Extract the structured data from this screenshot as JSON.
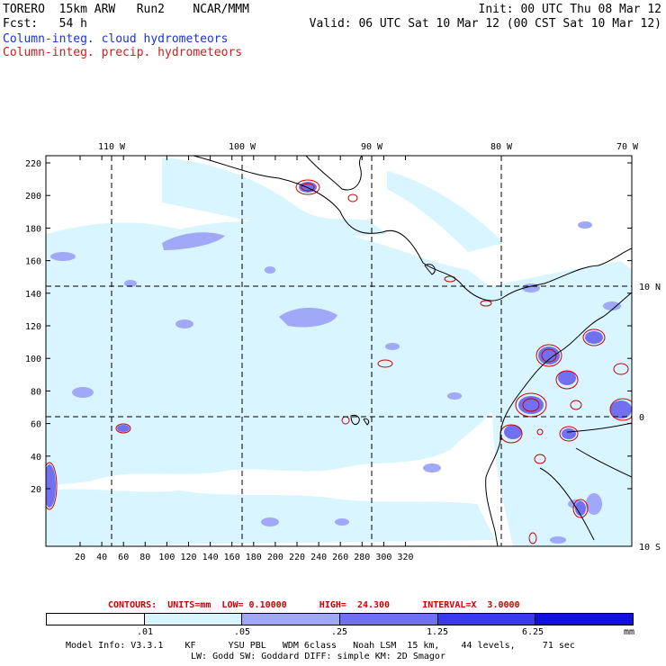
{
  "header": {
    "model": "TORERO  15km ARW   Run2    NCAR/MMM",
    "init": "Init: 00 UTC Thu 08 Mar 12",
    "fcst": "Fcst:   54 h",
    "valid": "Valid: 06 UTC Sat 10 Mar 12 (00 CST Sat 10 Mar 12)",
    "field_cloud": "Column-integ. cloud hydrometeors",
    "field_precip": "Column-integ. precip. hydrometeors",
    "color_cloud_label": "#1a33d6",
    "color_precip_label": "#d41a1a"
  },
  "map": {
    "top_lon_labels": [
      "110 W",
      "100 W",
      "90 W",
      "80 W",
      "70 W"
    ],
    "right_lat_labels": [
      "10 N",
      "0",
      "10 S"
    ],
    "y_ticks": [
      "220",
      "200",
      "180",
      "160",
      "140",
      "120",
      "100",
      "80",
      "60",
      "40",
      "20"
    ],
    "x_ticks": [
      "20",
      "40",
      "60",
      "80",
      "100",
      "120",
      "140",
      "160",
      "180",
      "200",
      "220",
      "240",
      "260",
      "280",
      "300",
      "320"
    ]
  },
  "contours": {
    "text": "CONTOURS:  UNITS=mm  LOW= 0.10000      HIGH=  24.300      INTERVAL=X  3.0000",
    "color": "#cc0000"
  },
  "colorbar": {
    "labels": [
      ".01",
      ".05",
      ".25",
      "1.25",
      "6.25"
    ],
    "unit": "mm",
    "colors": [
      "#ffffff",
      "#d9f5ff",
      "#a0a8f8",
      "#7070f0",
      "#3a3aec",
      "#1010e0"
    ]
  },
  "footer": {
    "line1": "Model Info: V3.3.1    KF      YSU PBL   WDM 6class   Noah LSM  15 km,    44 levels,     71 sec",
    "line2": "LW: Godd SW: Goddard DIFF: simple KM: 2D Smagor"
  }
}
